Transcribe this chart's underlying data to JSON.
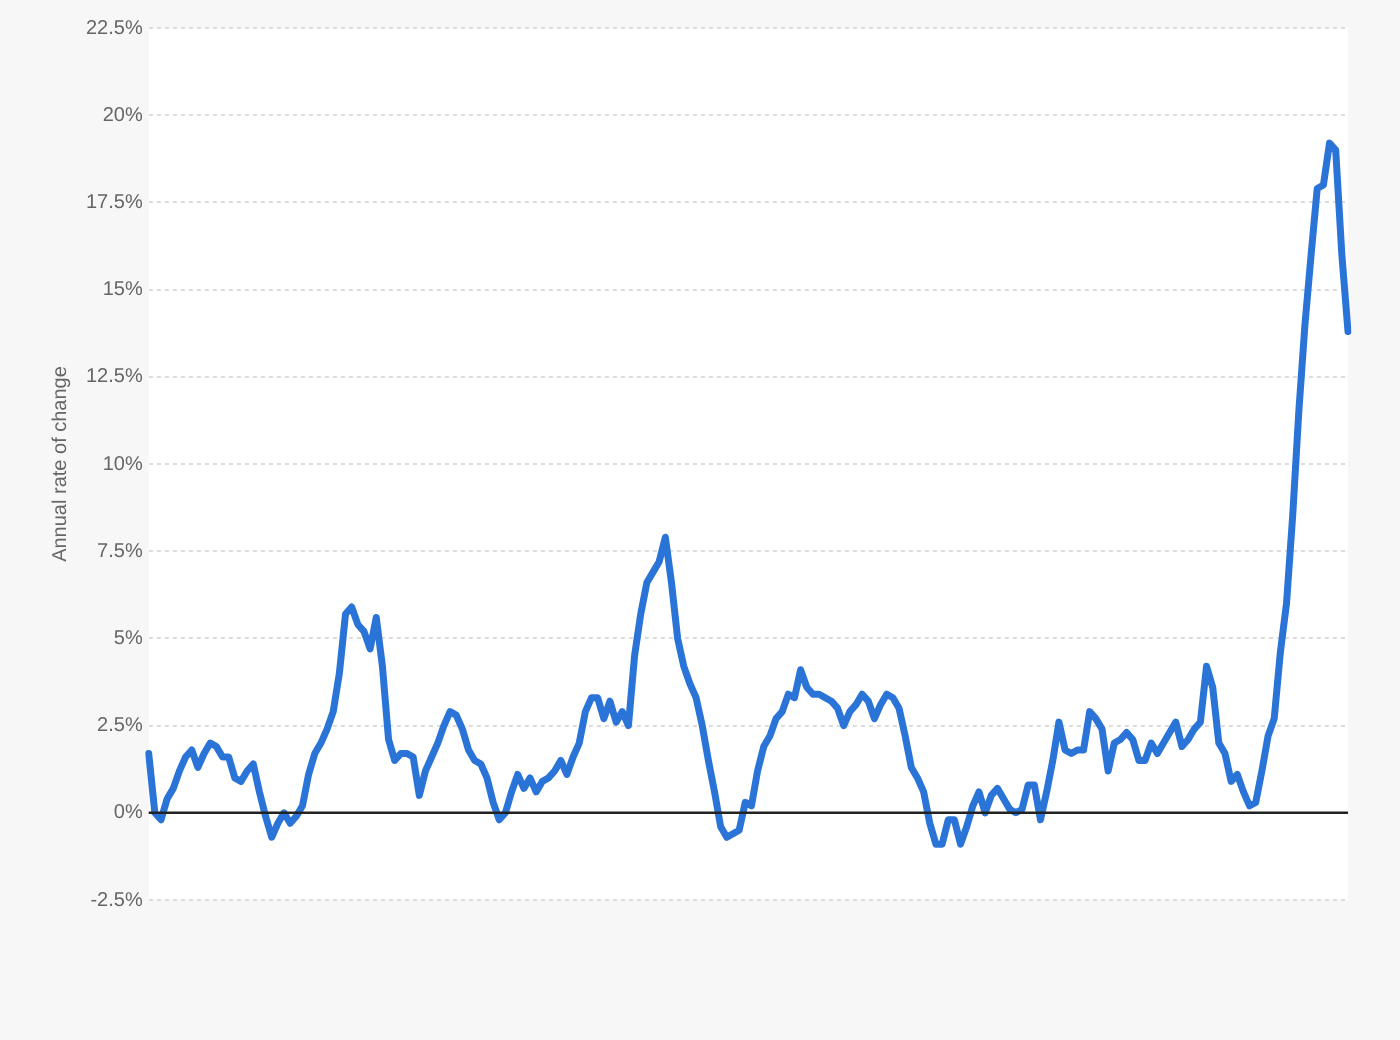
{
  "chart_data": {
    "type": "line",
    "ylabel": "Annual rate of change",
    "color": "#2a74d8",
    "grid": "y",
    "legend": false,
    "marker": "none",
    "line_style": "solid",
    "ylim": [
      -2.5,
      22.5
    ],
    "yticks": [
      {
        "value": -2.5,
        "label": "-2.5%"
      },
      {
        "value": 0,
        "label": "0%"
      },
      {
        "value": 2.5,
        "label": "2.5%"
      },
      {
        "value": 5,
        "label": "5%"
      },
      {
        "value": 7.5,
        "label": "7.5%"
      },
      {
        "value": 10,
        "label": "10%"
      },
      {
        "value": 12.5,
        "label": "12.5%"
      },
      {
        "value": 15,
        "label": "15%"
      },
      {
        "value": 17.5,
        "label": "17.5%"
      },
      {
        "value": 20,
        "label": "20%"
      },
      {
        "value": 22.5,
        "label": "22.5%"
      }
    ],
    "ref_lines": [
      {
        "axis": "y",
        "value": 0,
        "color": "#222222"
      }
    ],
    "values": [
      1.7,
      0,
      -0.2,
      0.4,
      0.7,
      1.2,
      1.6,
      1.8,
      1.3,
      1.7,
      2.0,
      1.9,
      1.6,
      1.6,
      1.0,
      0.9,
      1.2,
      1.4,
      0.6,
      -0.1,
      -0.7,
      -0.3,
      0,
      -0.3,
      -0.1,
      0.2,
      1.1,
      1.7,
      2.0,
      2.4,
      2.9,
      4.0,
      5.7,
      5.9,
      5.4,
      5.2,
      4.7,
      5.6,
      4.2,
      2.1,
      1.5,
      1.7,
      1.7,
      1.6,
      0.5,
      1.2,
      1.6,
      2.0,
      2.5,
      2.9,
      2.8,
      2.4,
      1.8,
      1.5,
      1.4,
      1.0,
      0.3,
      -0.2,
      0.0,
      0.6,
      1.1,
      0.7,
      1.0,
      0.6,
      0.9,
      1.0,
      1.2,
      1.5,
      1.1,
      1.6,
      2.0,
      2.9,
      3.3,
      3.3,
      2.7,
      3.2,
      2.6,
      2.9,
      2.5,
      4.5,
      5.7,
      6.6,
      6.9,
      7.2,
      7.9,
      6.6,
      5.0,
      4.2,
      3.7,
      3.3,
      2.5,
      1.5,
      0.6,
      -0.4,
      -0.7,
      -0.6,
      -0.5,
      0.3,
      0.2,
      1.2,
      1.9,
      2.2,
      2.7,
      2.9,
      3.4,
      3.3,
      4.1,
      3.6,
      3.4,
      3.4,
      3.3,
      3.2,
      3.0,
      2.5,
      2.9,
      3.1,
      3.4,
      3.2,
      2.7,
      3.1,
      3.4,
      3.3,
      3.0,
      2.2,
      1.3,
      1.0,
      0.6,
      -0.3,
      -0.9,
      -0.9,
      -0.2,
      -0.2,
      -0.9,
      -0.4,
      0.2,
      0.6,
      0,
      0.5,
      0.7,
      0.4,
      0.1,
      0.0,
      0.1,
      0.8,
      0.8,
      -0.2,
      0.6,
      1.5,
      2.6,
      1.8,
      1.7,
      1.8,
      1.8,
      2.9,
      2.7,
      2.4,
      1.2,
      2.0,
      2.1,
      2.3,
      2.1,
      1.5,
      1.5,
      2.0,
      1.7,
      2.0,
      2.3,
      2.6,
      1.9,
      2.1,
      2.4,
      2.6,
      4.2,
      3.6,
      2.0,
      1.7,
      0.9,
      1.1,
      0.6,
      0.2,
      0.3,
      1.2,
      2.2,
      2.7,
      4.6,
      6.0,
      8.5,
      11.5,
      14.0,
      16.0,
      17.9,
      18.0,
      19.2,
      19.0,
      16.0,
      13.8
    ],
    "categories": [
      null,
      null,
      null,
      null,
      null,
      null,
      null,
      null,
      null,
      null,
      null,
      null,
      null,
      null,
      null,
      null,
      null,
      null,
      null,
      null,
      null,
      null,
      null,
      null,
      null,
      null,
      null,
      null,
      null,
      null,
      null,
      null,
      null,
      null,
      null,
      null,
      null,
      null,
      null,
      null,
      null,
      null,
      null,
      null,
      null,
      null,
      null,
      null,
      null,
      null,
      null,
      null,
      null,
      null,
      null,
      null,
      null,
      null,
      null,
      null,
      null,
      null,
      null,
      null,
      null,
      null,
      null,
      null,
      null,
      null,
      null,
      null,
      null,
      null,
      null,
      null,
      null,
      null,
      null,
      null,
      null,
      null,
      null,
      null,
      null,
      null,
      null,
      null,
      null,
      null,
      null,
      null,
      null,
      null,
      null,
      null,
      null,
      null,
      null,
      null,
      null,
      null,
      null,
      null,
      null,
      null,
      null,
      null,
      null,
      null,
      null,
      null,
      null,
      null,
      null,
      null,
      null,
      null,
      null,
      null,
      null,
      null,
      null,
      null,
      null,
      null,
      null,
      null,
      null,
      null,
      null,
      null,
      null,
      null,
      null,
      null,
      null,
      null,
      null,
      null,
      null,
      null,
      null,
      null,
      null,
      null,
      null,
      null,
      null,
      null,
      null,
      null,
      null,
      null,
      null,
      null,
      null,
      null,
      null,
      null,
      null,
      null,
      null,
      null,
      null,
      null,
      null,
      null,
      null,
      null,
      null,
      null,
      null,
      null,
      null,
      null,
      null,
      null,
      null,
      null,
      null,
      null,
      null,
      null,
      null,
      null,
      null,
      null,
      null,
      null,
      null,
      null,
      null,
      null,
      null,
      null
    ]
  }
}
